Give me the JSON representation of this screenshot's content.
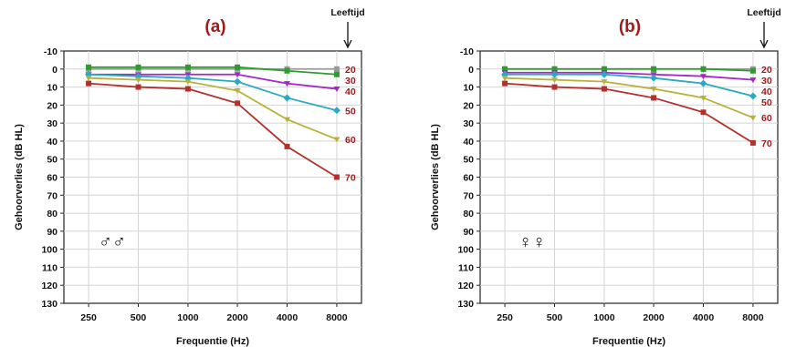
{
  "chart_data": [
    {
      "type": "line",
      "title": "(a)",
      "title_color": "#a01b1b",
      "xlabel": "Frequentie (Hz)",
      "ylabel": "Gehoorverlies (dB HL)",
      "x": [
        "250",
        "500",
        "1000",
        "2000",
        "4000",
        "8000"
      ],
      "ylim": [
        -10,
        130
      ],
      "y_ticks": [
        -10,
        0,
        10,
        20,
        30,
        40,
        50,
        60,
        70,
        80,
        90,
        100,
        110,
        120,
        130
      ],
      "y_inverted": true,
      "grid": true,
      "arrow_label": "Leeftijd",
      "symbol": "♂♂",
      "series": [
        {
          "name": "20",
          "color": "#999999",
          "values": [
            0,
            0,
            0,
            0,
            0,
            0
          ]
        },
        {
          "name": "30",
          "color": "#2e9b2e",
          "values": [
            -1,
            -1,
            -1,
            -1,
            1,
            3
          ]
        },
        {
          "name": "40",
          "color": "#a427c9",
          "values": [
            3,
            3,
            3,
            3,
            8,
            11
          ]
        },
        {
          "name": "50",
          "color": "#29a9c2",
          "values": [
            3,
            4,
            5,
            7,
            16,
            23
          ]
        },
        {
          "name": "60",
          "color": "#b9b13a",
          "values": [
            5,
            6,
            7,
            12,
            28,
            39
          ]
        },
        {
          "name": "70",
          "color": "#b5302a",
          "values": [
            8,
            10,
            11,
            19,
            43,
            60
          ]
        }
      ]
    },
    {
      "type": "line",
      "title": "(b)",
      "title_color": "#a01b1b",
      "xlabel": "Frequentie (Hz)",
      "ylabel": "Gehoorverlies (dB HL)",
      "x": [
        "250",
        "500",
        "1000",
        "2000",
        "4000",
        "8000"
      ],
      "ylim": [
        -10,
        130
      ],
      "y_ticks": [
        -10,
        0,
        10,
        20,
        30,
        40,
        50,
        60,
        70,
        80,
        90,
        100,
        110,
        120,
        130
      ],
      "y_inverted": true,
      "grid": true,
      "arrow_label": "Leeftijd",
      "symbol": "♀♀",
      "series": [
        {
          "name": "20",
          "color": "#999999",
          "values": [
            0,
            0,
            0,
            0,
            0,
            0
          ]
        },
        {
          "name": "30",
          "color": "#2e9b2e",
          "values": [
            0,
            0,
            0,
            0,
            0,
            1
          ]
        },
        {
          "name": "40",
          "color": "#a427c9",
          "values": [
            2,
            2,
            2,
            3,
            4,
            6
          ]
        },
        {
          "name": "50",
          "color": "#29a9c2",
          "values": [
            3,
            3,
            3,
            5,
            8,
            15
          ]
        },
        {
          "name": "60",
          "color": "#b9b13a",
          "values": [
            5,
            6,
            7,
            11,
            16,
            27
          ]
        },
        {
          "name": "70",
          "color": "#b5302a",
          "values": [
            8,
            10,
            11,
            16,
            24,
            41
          ]
        }
      ]
    }
  ]
}
